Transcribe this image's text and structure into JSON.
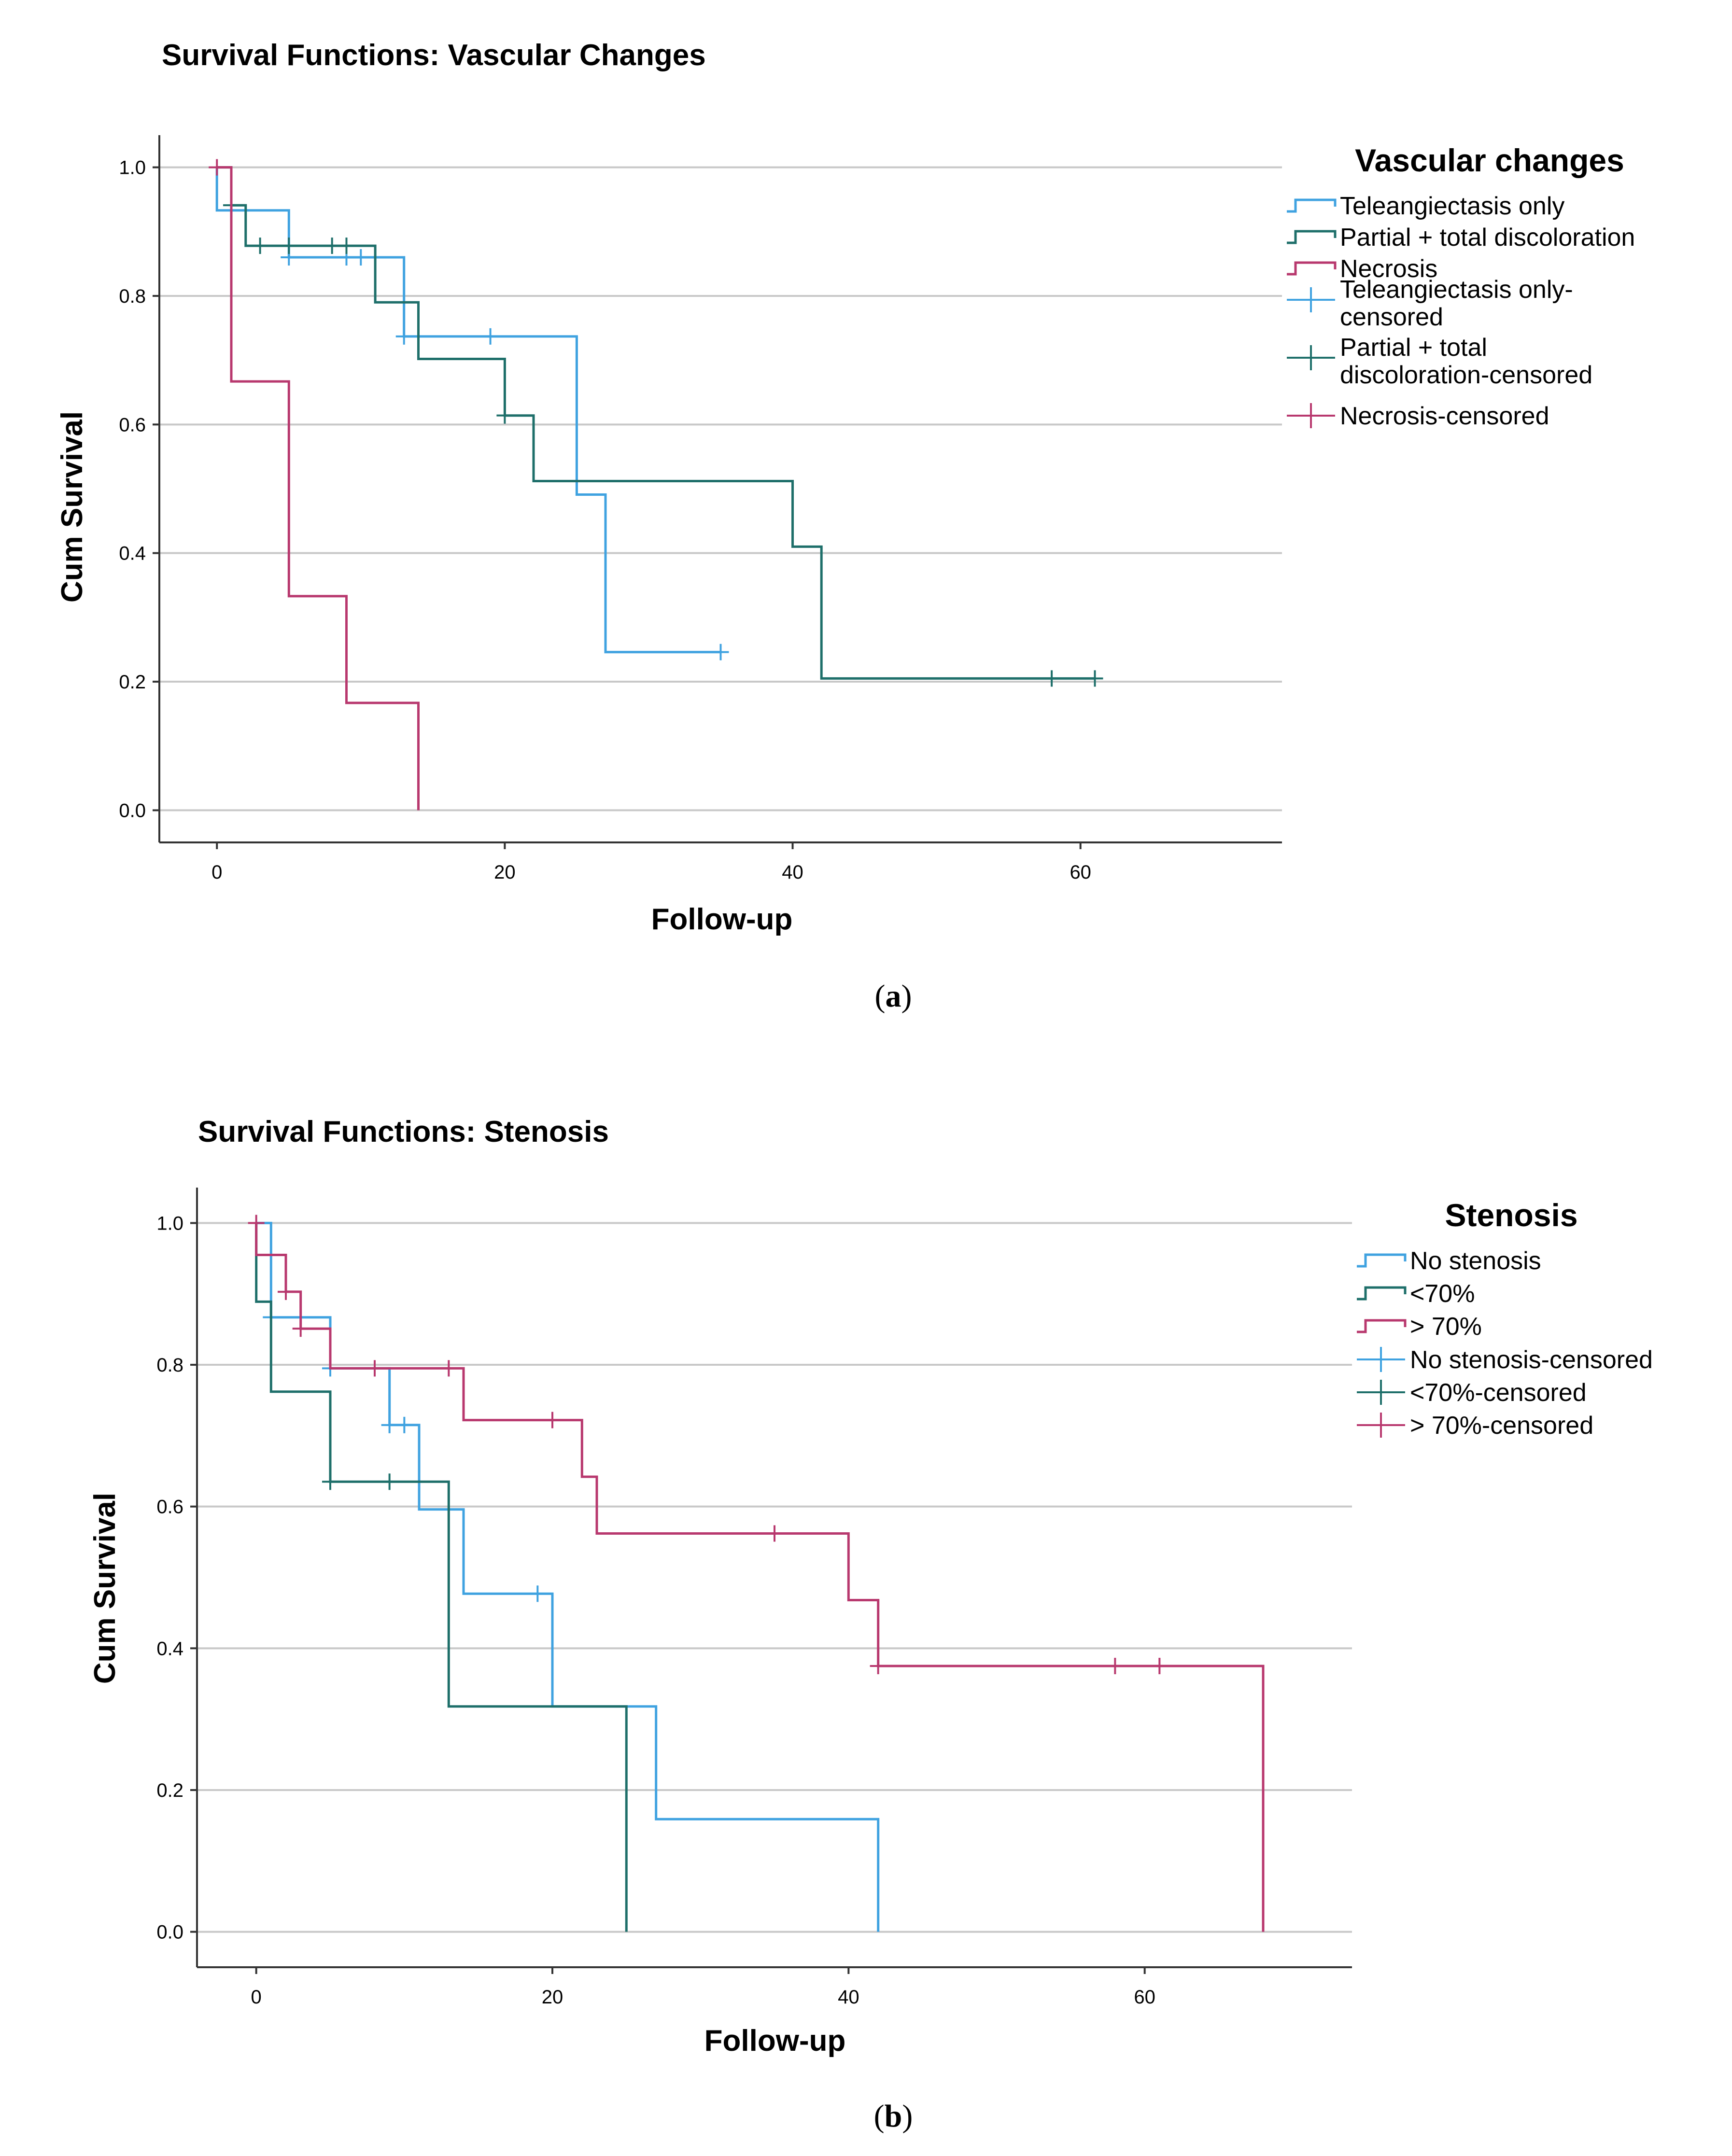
{
  "chart_data": [
    {
      "type": "line",
      "subtype": "kaplan-meier",
      "title": "Survival Functions: Vascular Changes",
      "xlabel": "Follow-up",
      "ylabel": "Cum Survival",
      "xlim": [
        -4,
        74
      ],
      "ylim": [
        -0.05,
        1.05
      ],
      "xticks": [
        0,
        20,
        40,
        60
      ],
      "xtick_labels": [
        "0",
        "20",
        "40",
        "60"
      ],
      "yticks": [
        0.0,
        0.2,
        0.4,
        0.6,
        0.8,
        1.0
      ],
      "ytick_labels": [
        "0.0",
        "0.2",
        "0.4",
        "0.6",
        "0.8",
        "1.0"
      ],
      "grid": "horizontal",
      "legend_title": "Vascular changes",
      "legend_position": "right",
      "legend": [
        {
          "label": "Teleangiectasis only",
          "kind": "line",
          "series": 0
        },
        {
          "label": "Partial + total discoloration",
          "kind": "line",
          "series": 1
        },
        {
          "label": "Necrosis",
          "kind": "line",
          "series": 2
        },
        {
          "label": "Teleangiectasis only-",
          "label2": "censored",
          "kind": "censor",
          "series": 0
        },
        {
          "label": "Partial + total",
          "label2": "discoloration-censored",
          "kind": "censor",
          "series": 1
        },
        {
          "label": "Necrosis-censored",
          "kind": "censor",
          "series": 2
        }
      ],
      "caption": "a",
      "series": [
        {
          "name": "Teleangiectasis only",
          "color": "#3fa2e0",
          "steps": [
            [
              0,
              1.0
            ],
            [
              0,
              0.933
            ],
            [
              5,
              0.933
            ],
            [
              5,
              0.86
            ],
            [
              13,
              0.86
            ],
            [
              13,
              0.737
            ],
            [
              25,
              0.737
            ],
            [
              25,
              0.491
            ],
            [
              27,
              0.491
            ],
            [
              27,
              0.246
            ],
            [
              35,
              0.246
            ]
          ],
          "censored": [
            [
              5,
              0.86
            ],
            [
              9,
              0.86
            ],
            [
              10,
              0.86
            ],
            [
              13,
              0.737
            ],
            [
              19,
              0.737
            ],
            [
              35,
              0.246
            ]
          ]
        },
        {
          "name": "Partial + total discoloration",
          "color": "#1e6f6a",
          "steps": [
            [
              0,
              1.0
            ],
            [
              1,
              1.0
            ],
            [
              1,
              0.941
            ],
            [
              2,
              0.941
            ],
            [
              2,
              0.878
            ],
            [
              11,
              0.878
            ],
            [
              11,
              0.79
            ],
            [
              14,
              0.79
            ],
            [
              14,
              0.702
            ],
            [
              20,
              0.702
            ],
            [
              20,
              0.614
            ],
            [
              22,
              0.614
            ],
            [
              22,
              0.512
            ],
            [
              40,
              0.512
            ],
            [
              40,
              0.41
            ],
            [
              42,
              0.41
            ],
            [
              42,
              0.205
            ],
            [
              61,
              0.205
            ]
          ],
          "censored": [
            [
              1,
              0.941
            ],
            [
              3,
              0.878
            ],
            [
              5,
              0.878
            ],
            [
              8,
              0.878
            ],
            [
              9,
              0.878
            ],
            [
              20,
              0.614
            ],
            [
              58,
              0.205
            ],
            [
              61,
              0.205
            ]
          ]
        },
        {
          "name": "Necrosis",
          "color": "#b8386e",
          "steps": [
            [
              0,
              1.0
            ],
            [
              1,
              1.0
            ],
            [
              1,
              0.667
            ],
            [
              5,
              0.667
            ],
            [
              5,
              0.333
            ],
            [
              9,
              0.333
            ],
            [
              9,
              0.167
            ],
            [
              14,
              0.167
            ],
            [
              14,
              0.0
            ]
          ],
          "censored": [
            [
              0,
              1.0
            ]
          ]
        }
      ]
    },
    {
      "type": "line",
      "subtype": "kaplan-meier",
      "title": "Survival Functions: Stenosis",
      "xlabel": "Follow-up",
      "ylabel": "Cum Survival",
      "xlim": [
        -4,
        74
      ],
      "ylim": [
        -0.05,
        1.05
      ],
      "xticks": [
        0,
        20,
        40,
        60
      ],
      "xtick_labels": [
        "0",
        "20",
        "40",
        "60"
      ],
      "yticks": [
        0.0,
        0.2,
        0.4,
        0.6,
        0.8,
        1.0
      ],
      "ytick_labels": [
        "0.0",
        "0.2",
        "0.4",
        "0.6",
        "0.8",
        "1.0"
      ],
      "grid": "horizontal",
      "legend_title": "Stenosis",
      "legend_position": "right",
      "legend": [
        {
          "label": "No stenosis",
          "kind": "line",
          "series": 0
        },
        {
          "label": "<70%",
          "kind": "line",
          "series": 1
        },
        {
          "label": "> 70%",
          "kind": "line",
          "series": 2
        },
        {
          "label": "No stenosis-censored",
          "kind": "censor",
          "series": 0
        },
        {
          "label": "<70%-censored",
          "kind": "censor",
          "series": 1
        },
        {
          "label": "> 70%-censored",
          "kind": "censor",
          "series": 2
        }
      ],
      "caption": "b",
      "series": [
        {
          "name": "No stenosis",
          "color": "#3fa2e0",
          "steps": [
            [
              0,
              1.0
            ],
            [
              1,
              1.0
            ],
            [
              1,
              0.867
            ],
            [
              5,
              0.867
            ],
            [
              5,
              0.795
            ],
            [
              9,
              0.795
            ],
            [
              9,
              0.715
            ],
            [
              11,
              0.715
            ],
            [
              11,
              0.596
            ],
            [
              14,
              0.596
            ],
            [
              14,
              0.477
            ],
            [
              20,
              0.477
            ],
            [
              20,
              0.318
            ],
            [
              27,
              0.318
            ],
            [
              27,
              0.159
            ],
            [
              42,
              0.159
            ],
            [
              42,
              0.0
            ]
          ],
          "censored": [
            [
              1,
              0.867
            ],
            [
              5,
              0.795
            ],
            [
              9,
              0.715
            ],
            [
              10,
              0.715
            ],
            [
              19,
              0.477
            ]
          ]
        },
        {
          "name": "<70%",
          "color": "#1e6f6a",
          "steps": [
            [
              0,
              1.0
            ],
            [
              0,
              0.889
            ],
            [
              1,
              0.889
            ],
            [
              1,
              0.762
            ],
            [
              5,
              0.762
            ],
            [
              5,
              0.635
            ],
            [
              13,
              0.635
            ],
            [
              13,
              0.318
            ],
            [
              25,
              0.318
            ],
            [
              25,
              0.0
            ]
          ],
          "censored": [
            [
              5,
              0.635
            ],
            [
              9,
              0.635
            ]
          ]
        },
        {
          "name": "> 70%",
          "color": "#b8386e",
          "steps": [
            [
              0,
              1.0
            ],
            [
              0,
              0.955
            ],
            [
              2,
              0.955
            ],
            [
              2,
              0.903
            ],
            [
              3,
              0.903
            ],
            [
              3,
              0.851
            ],
            [
              5,
              0.851
            ],
            [
              5,
              0.795
            ],
            [
              14,
              0.795
            ],
            [
              14,
              0.722
            ],
            [
              22,
              0.722
            ],
            [
              22,
              0.642
            ],
            [
              23,
              0.642
            ],
            [
              23,
              0.562
            ],
            [
              40,
              0.562
            ],
            [
              40,
              0.468
            ],
            [
              42,
              0.468
            ],
            [
              42,
              0.375
            ],
            [
              68,
              0.375
            ],
            [
              68,
              0.0
            ]
          ],
          "censored": [
            [
              0,
              1.0
            ],
            [
              2,
              0.903
            ],
            [
              3,
              0.851
            ],
            [
              8,
              0.795
            ],
            [
              13,
              0.795
            ],
            [
              20,
              0.722
            ],
            [
              35,
              0.562
            ],
            [
              42,
              0.375
            ],
            [
              58,
              0.375
            ],
            [
              61,
              0.375
            ]
          ]
        }
      ]
    }
  ]
}
